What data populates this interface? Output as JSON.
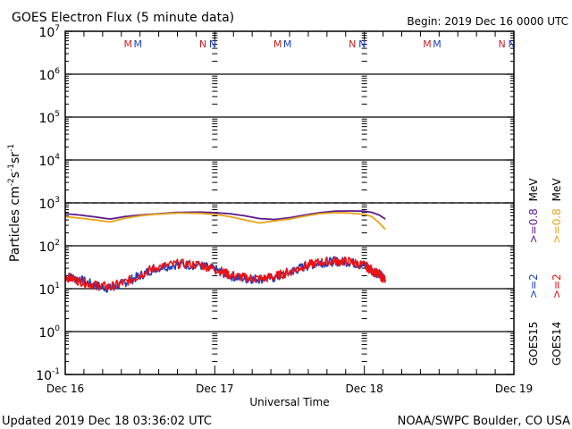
{
  "chart_data": {
    "type": "line",
    "title": "GOES Electron Flux (5 minute data)",
    "subtitle": "Begin: 2019 Dec 16 0000 UTC",
    "xlabel": "Universal Time",
    "ylabel": "Particles cm",
    "ylabel_parts": {
      "base": "Particles cm",
      "sup1": "-2",
      "s": "s",
      "sup2": "-1",
      "sr": "sr",
      "sup3": "-1"
    },
    "yscale": "log",
    "ylim_exp": [
      -1,
      7
    ],
    "ytick_exponents": [
      "7",
      "6",
      "5",
      "4",
      "3",
      "2",
      "1",
      "0",
      "-1"
    ],
    "xlim_days": [
      0,
      3
    ],
    "xtick_labels": [
      "Dec 16",
      "Dec 17",
      "Dec 18",
      "Dec 19"
    ],
    "threshold": {
      "value": 1000,
      "style": "dashed"
    },
    "mn_markers": [
      {
        "day": 0.45,
        "labels": [
          {
            "text": "M",
            "color": "#cc2222"
          },
          {
            "text": "M",
            "color": "#1a3fbf"
          }
        ]
      },
      {
        "day": 0.95,
        "labels": [
          {
            "text": "N",
            "color": "#cc2222"
          },
          {
            "text": "N",
            "color": "#1a3fbf"
          }
        ]
      },
      {
        "day": 1.45,
        "labels": [
          {
            "text": "M",
            "color": "#cc2222"
          },
          {
            "text": "M",
            "color": "#1a3fbf"
          }
        ]
      },
      {
        "day": 1.95,
        "labels": [
          {
            "text": "N",
            "color": "#cc2222"
          },
          {
            "text": "N",
            "color": "#1a3fbf"
          }
        ]
      },
      {
        "day": 2.45,
        "labels": [
          {
            "text": "M",
            "color": "#cc2222"
          },
          {
            "text": "M",
            "color": "#1a3fbf"
          }
        ]
      },
      {
        "day": 2.95,
        "labels": [
          {
            "text": "N",
            "color": "#cc2222"
          },
          {
            "text": "N",
            "color": "#1a3fbf"
          }
        ]
      }
    ],
    "series": [
      {
        "name": "GOES15 >=0.8 MeV",
        "color": "#5b1a8c",
        "x": [
          0,
          0.1,
          0.2,
          0.3,
          0.4,
          0.5,
          0.6,
          0.75,
          0.9,
          1.0,
          1.1,
          1.2,
          1.3,
          1.4,
          1.5,
          1.6,
          1.7,
          1.8,
          1.9,
          2.0,
          2.05,
          2.1,
          2.14
        ],
        "y": [
          560,
          520,
          470,
          420,
          480,
          520,
          550,
          600,
          610,
          590,
          560,
          500,
          430,
          410,
          450,
          520,
          590,
          640,
          650,
          640,
          600,
          520,
          420
        ]
      },
      {
        "name": "GOES14 >=0.8 MeV",
        "color": "#e8a317",
        "x": [
          0,
          0.1,
          0.2,
          0.3,
          0.4,
          0.5,
          0.6,
          0.75,
          0.9,
          1.0,
          1.1,
          1.2,
          1.3,
          1.4,
          1.5,
          1.6,
          1.7,
          1.8,
          1.9,
          2.0,
          2.05,
          2.1,
          2.14
        ],
        "y": [
          480,
          440,
          400,
          360,
          440,
          500,
          540,
          580,
          570,
          540,
          480,
          400,
          340,
          380,
          420,
          490,
          560,
          590,
          580,
          540,
          480,
          340,
          240
        ]
      },
      {
        "name": "GOES15 >=2 MeV",
        "color": "#1a3fbf",
        "x": [
          0,
          0.1,
          0.2,
          0.3,
          0.4,
          0.5,
          0.6,
          0.75,
          0.9,
          1.0,
          1.1,
          1.2,
          1.3,
          1.4,
          1.5,
          1.6,
          1.7,
          1.8,
          1.9,
          2.0,
          2.05,
          2.1,
          2.14
        ],
        "y": [
          20,
          16,
          12,
          10,
          14,
          20,
          30,
          37,
          35,
          28,
          20,
          17,
          17,
          18,
          24,
          33,
          40,
          43,
          42,
          34,
          26,
          22,
          17
        ]
      },
      {
        "name": "GOES14 >=2 MeV",
        "color": "#ee1111",
        "x": [
          0,
          0.1,
          0.2,
          0.3,
          0.4,
          0.5,
          0.6,
          0.75,
          0.9,
          1.0,
          1.1,
          1.2,
          1.3,
          1.4,
          1.5,
          1.6,
          1.7,
          1.8,
          1.9,
          2.0,
          2.05,
          2.1,
          2.14
        ],
        "y": [
          19,
          15,
          12,
          11,
          14,
          21,
          31,
          38,
          36,
          29,
          21,
          18,
          17,
          19,
          25,
          34,
          41,
          44,
          43,
          35,
          27,
          21,
          16
        ]
      }
    ],
    "legend": {
      "placement": "right",
      "columns": [
        {
          "satellite": "GOES15",
          "low": ">=2",
          "low_color": "#1a3fbf",
          "high": ">=0.8",
          "high_color": "#5b1a8c",
          "unit": "MeV"
        },
        {
          "satellite": "GOES14",
          "low": ">=2",
          "low_color": "#ee1111",
          "high": ">=0.8",
          "high_color": "#e8a317",
          "unit": "MeV"
        }
      ]
    }
  },
  "footer": {
    "updated": "Updated 2019 Dec 18 03:36:02 UTC",
    "credit": "NOAA/SWPC Boulder, CO USA"
  }
}
